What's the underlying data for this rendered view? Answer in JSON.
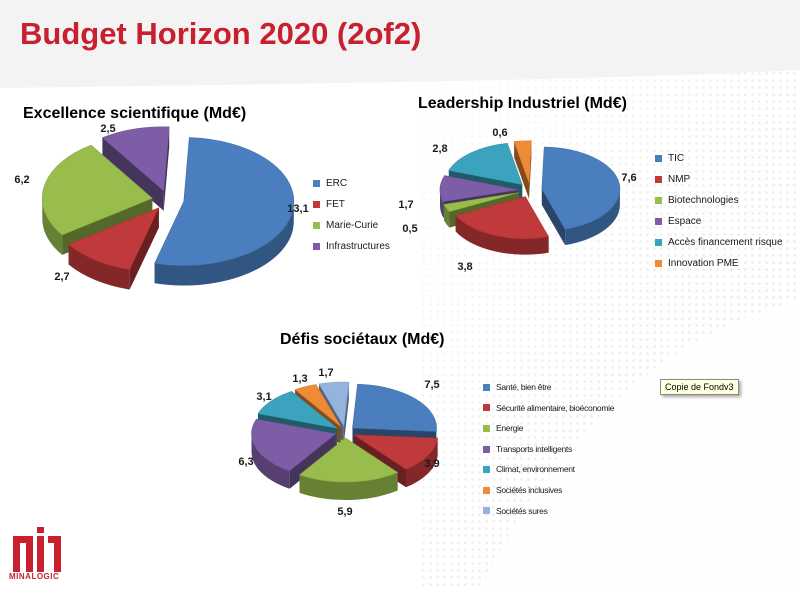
{
  "slide": {
    "title": "Budget Horizon 2020 (2of2)",
    "tooltip": "Copie de Fondv3",
    "logo_text": "MINALOGIC"
  },
  "colors": {
    "title": "#c8202f",
    "blue": "#4a7ebf",
    "red": "#c0393b",
    "green": "#98bd4c",
    "purple": "#7d5ea6",
    "teal": "#3ca3bf",
    "orange": "#ef8a35",
    "lightblue": "#96b3dd"
  },
  "chart_data": [
    {
      "type": "pie",
      "title": "Excellence scientifique (Md€)",
      "legend_position": "right",
      "categories": [
        "ERC",
        "FET",
        "Marie-Curie",
        "Infrastructures"
      ],
      "values": [
        13.1,
        2.7,
        6.2,
        2.5
      ],
      "value_labels": [
        "13,1",
        "2,7",
        "6,2",
        "2,5"
      ],
      "colors": [
        "#4a7ebf",
        "#c0393b",
        "#98bd4c",
        "#7d5ea6"
      ],
      "exploded": true
    },
    {
      "type": "pie",
      "title": "Leadership Industriel (Md€)",
      "legend_position": "right",
      "categories": [
        "TIC",
        "NMP",
        "Biotechnologies",
        "Espace",
        "Accès financement risque",
        "Innovation PME"
      ],
      "values": [
        7.6,
        3.8,
        0.5,
        1.7,
        2.8,
        0.6
      ],
      "value_labels": [
        "7,6",
        "3,8",
        "0,5",
        "1,7",
        "2,8",
        "0,6"
      ],
      "colors": [
        "#4a7ebf",
        "#c0393b",
        "#98bd4c",
        "#7d5ea6",
        "#3ca3bf",
        "#ef8a35"
      ],
      "exploded": true
    },
    {
      "type": "pie",
      "title": "Défis sociétaux (Md€)",
      "legend_position": "right",
      "categories": [
        "Santé, bien être",
        "Sécurité alimentaire, bioéconomie",
        "Energie",
        "Transports intelligents",
        "Climat, environnement",
        "Sociétés inclusives",
        "Sociétés sures"
      ],
      "values": [
        7.5,
        3.9,
        5.9,
        6.3,
        3.1,
        1.3,
        1.7
      ],
      "value_labels": [
        "7,5",
        "3,9",
        "5,9",
        "6,3",
        "3,1",
        "1,3",
        "1,7"
      ],
      "colors": [
        "#4a7ebf",
        "#c0393b",
        "#98bd4c",
        "#7d5ea6",
        "#3ca3bf",
        "#ef8a35",
        "#96b3dd"
      ],
      "exploded": true
    }
  ]
}
